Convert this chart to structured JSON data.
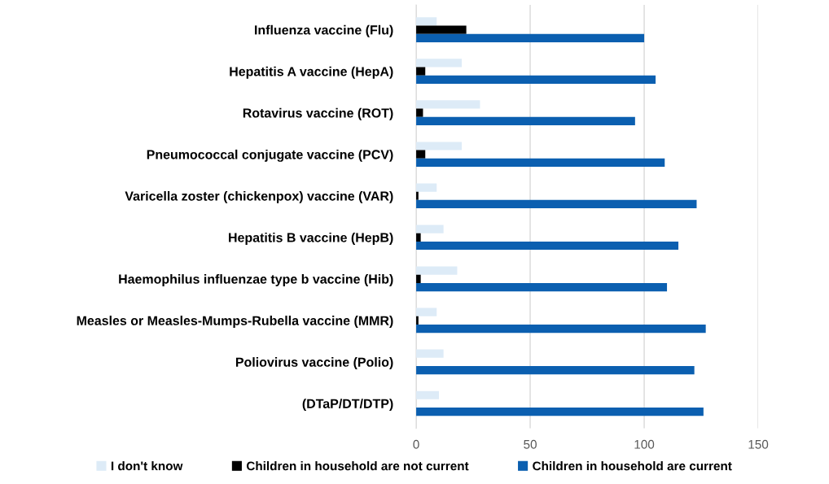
{
  "chart_data": {
    "type": "bar",
    "orientation": "horizontal",
    "categories": [
      "Influenza vaccine (Flu)",
      "Hepatitis A vaccine (HepA)",
      "Rotavirus vaccine (ROT)",
      "Pneumococcal conjugate vaccine (PCV)",
      "Varicella zoster (chickenpox) vaccine (VAR)",
      "Hepatitis B vaccine (HepB)",
      "Haemophilus influenzae type b vaccine (Hib)",
      "Measles or Measles-Mumps-Rubella vaccine (MMR)",
      "Poliovirus vaccine (Polio)",
      "(DTaP/DT/DTP)"
    ],
    "series": [
      {
        "name": "I don't know",
        "color": "#ddebf7",
        "values": [
          9,
          20,
          28,
          20,
          9,
          12,
          18,
          9,
          12,
          10
        ]
      },
      {
        "name": "Children in household are not current",
        "color": "#000000",
        "values": [
          22,
          4,
          3,
          4,
          1,
          2,
          2,
          1,
          0,
          0
        ]
      },
      {
        "name": "Children in household are current",
        "color": "#0b5fb0",
        "values": [
          100,
          105,
          96,
          109,
          123,
          115,
          110,
          127,
          122,
          126
        ]
      }
    ],
    "xlim": [
      0,
      150
    ],
    "xticks": [
      0,
      50,
      100,
      150
    ],
    "grid": "x",
    "legend": "bottom"
  }
}
